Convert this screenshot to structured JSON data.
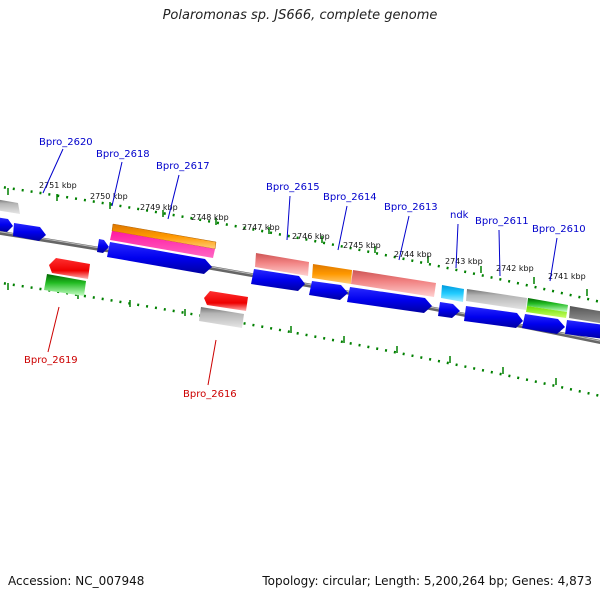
{
  "title": "Polaromonas sp. JS666, complete genome",
  "footer": {
    "accession": "Accession: NC_007948",
    "topology": "Topology: circular; Length: 5,200,264 bp; Genes: 4,873"
  },
  "colors": {
    "forward_strand": "#0000ee",
    "reverse_strand": "#ee0000",
    "label_forward": "#0000cc",
    "label_reverse": "#cc0000",
    "ticks": "#008000",
    "backbone": "#888888"
  },
  "scale_labels": [
    "2751 kbp",
    "2750 kbp",
    "2749 kbp",
    "2748 kbp",
    "2747 kbp",
    "2746 kbp",
    "2745 kbp",
    "2744 kbp",
    "2743 kbp",
    "2742 kbp",
    "2741 kbp"
  ],
  "genes_forward": [
    "Bpro_2620",
    "Bpro_2618",
    "Bpro_2617",
    "Bpro_2615",
    "Bpro_2614",
    "Bpro_2613",
    "ndk",
    "Bpro_2611",
    "Bpro_2610"
  ],
  "genes_reverse": [
    "Bpro_2619",
    "Bpro_2616"
  ]
}
